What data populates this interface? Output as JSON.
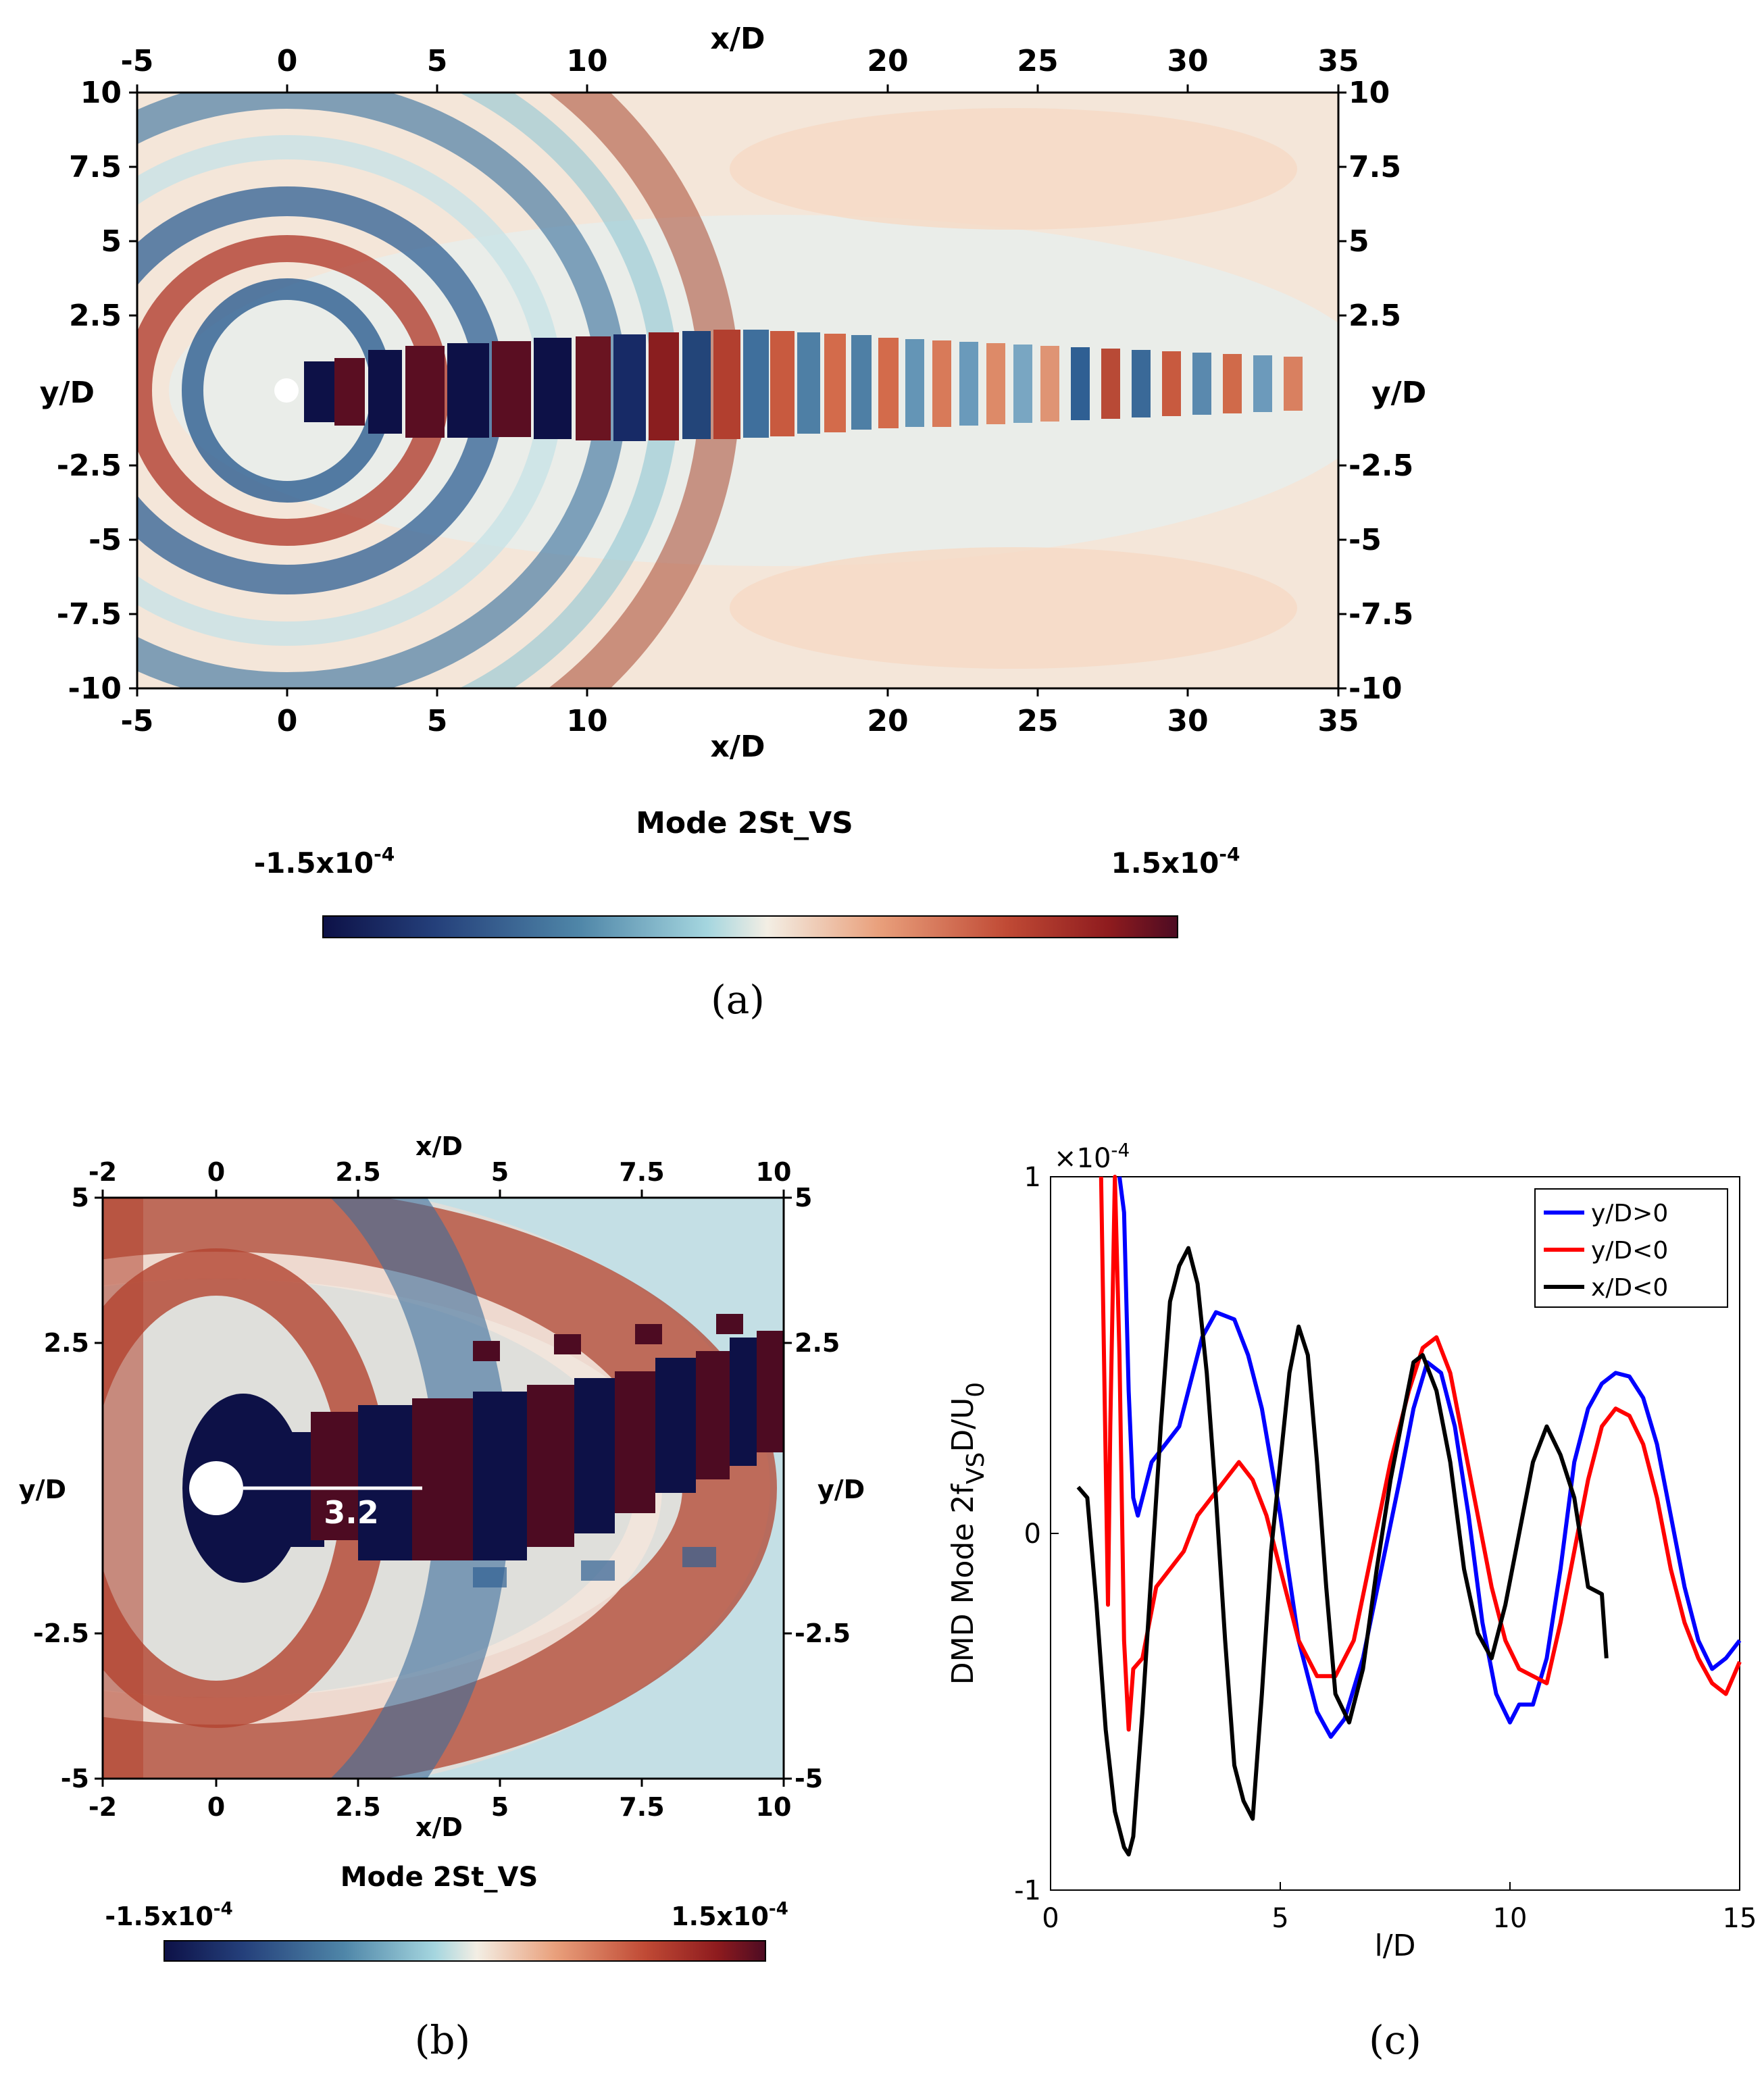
{
  "panel_a": {
    "caption": "(a)",
    "x_axis_label": "x/D",
    "y_axis_label": "y/D",
    "x_ticks": [
      "-5",
      "0",
      "5",
      "10",
      "20",
      "25",
      "30",
      "35"
    ],
    "y_ticks": [
      "10",
      "7.5",
      "5",
      "2.5",
      "-2.5",
      "-5",
      "-7.5",
      "-10"
    ],
    "colorbar_title": "Mode 2St_VS",
    "colorbar_min": "-1.5x10",
    "colorbar_max": "1.5x10",
    "colorbar_exp": "-4"
  },
  "panel_b": {
    "caption": "(b)",
    "x_axis_label": "x/D",
    "y_axis_label": "y/D",
    "x_ticks": [
      "-2",
      "0",
      "2.5",
      "5",
      "7.5",
      "10"
    ],
    "y_ticks": [
      "5",
      "2.5",
      "-2.5",
      "-5"
    ],
    "annotation": "3.2",
    "colorbar_title": "Mode 2St_VS",
    "colorbar_min": "-1.5x10",
    "colorbar_max": "1.5x10",
    "colorbar_exp": "-4"
  },
  "panel_c": {
    "caption": "(c)",
    "scale_label": "×10",
    "scale_exp": "-4",
    "ylabel_main": "DMD Mode 2f",
    "ylabel_sub": "VS",
    "ylabel_tail": "D/U",
    "ylabel_tail_sub": "0",
    "xlabel": "l/D",
    "x_tick_labels": [
      "0",
      "5",
      "10",
      "15"
    ],
    "y_tick_labels": [
      "1",
      "0",
      "-1"
    ]
  },
  "colors": {
    "cmap": [
      "#0d1147",
      "#243f7a",
      "#4f86a8",
      "#a5d6df",
      "#f3eee4",
      "#e9a07c",
      "#c04a35",
      "#8e1b1e",
      "#4d0b22"
    ],
    "series_blue": "#0000ff",
    "series_red": "#ff0000",
    "series_black": "#000000"
  },
  "chart_data": {
    "type": "line",
    "title": "",
    "xlabel": "l/D",
    "ylabel": "DMD Mode 2f_VS D/U_0 (x10^-4)",
    "xlim": [
      0,
      15
    ],
    "ylim": [
      -1,
      1
    ],
    "legend_position": "top-right",
    "series": [
      {
        "name": "y/D>0",
        "color": "#0000ff",
        "x": [
          1.5,
          1.6,
          1.7,
          1.8,
          1.9,
          2.0,
          2.2,
          2.5,
          2.8,
          3.0,
          3.3,
          3.6,
          4.0,
          4.3,
          4.6,
          5.0,
          5.4,
          5.8,
          6.1,
          6.4,
          6.8,
          7.2,
          7.6,
          7.9,
          8.2,
          8.5,
          8.8,
          9.1,
          9.4,
          9.7,
          10.0,
          10.2,
          10.5,
          10.8,
          11.1,
          11.4,
          11.7,
          12.0,
          12.3,
          12.6,
          12.9,
          13.2,
          13.5,
          13.8,
          14.1,
          14.4,
          14.7,
          15.0
        ],
        "y": [
          1.0,
          0.9,
          0.4,
          0.1,
          0.05,
          0.1,
          0.2,
          0.25,
          0.3,
          0.4,
          0.55,
          0.62,
          0.6,
          0.5,
          0.35,
          0.05,
          -0.3,
          -0.5,
          -0.57,
          -0.52,
          -0.35,
          -0.1,
          0.15,
          0.35,
          0.48,
          0.45,
          0.3,
          0.05,
          -0.25,
          -0.45,
          -0.53,
          -0.48,
          -0.48,
          -0.35,
          -0.1,
          0.2,
          0.35,
          0.42,
          0.45,
          0.44,
          0.38,
          0.25,
          0.05,
          -0.15,
          -0.3,
          -0.38,
          -0.35,
          -0.3
        ],
        "label": "y/D>0"
      },
      {
        "name": "y/D<0",
        "color": "#ff0000",
        "x": [
          1.1,
          1.15,
          1.2,
          1.25,
          1.3,
          1.4,
          1.5,
          1.6,
          1.7,
          1.8,
          2.0,
          2.3,
          2.6,
          2.9,
          3.2,
          3.5,
          3.8,
          4.1,
          4.4,
          4.7,
          5.0,
          5.4,
          5.8,
          6.2,
          6.6,
          7.0,
          7.4,
          7.8,
          8.1,
          8.4,
          8.7,
          9.0,
          9.3,
          9.6,
          9.9,
          10.2,
          10.5,
          10.8,
          11.1,
          11.4,
          11.7,
          12.0,
          12.3,
          12.6,
          12.9,
          13.2,
          13.5,
          13.8,
          14.1,
          14.4,
          14.7,
          15.0
        ],
        "y": [
          1.0,
          0.6,
          0.2,
          -0.2,
          0.3,
          1.0,
          0.5,
          -0.3,
          -0.55,
          -0.38,
          -0.35,
          -0.15,
          -0.1,
          -0.05,
          0.05,
          0.1,
          0.15,
          0.2,
          0.15,
          0.05,
          -0.1,
          -0.3,
          -0.4,
          -0.4,
          -0.3,
          -0.05,
          0.2,
          0.4,
          0.52,
          0.55,
          0.45,
          0.25,
          0.05,
          -0.15,
          -0.3,
          -0.38,
          -0.4,
          -0.42,
          -0.25,
          -0.05,
          0.15,
          0.3,
          0.35,
          0.33,
          0.25,
          0.1,
          -0.1,
          -0.25,
          -0.35,
          -0.42,
          -0.45,
          -0.36
        ],
        "label": "y/D<0"
      },
      {
        "name": "x/D<0",
        "color": "#000000",
        "x": [
          0.6,
          0.8,
          1.0,
          1.2,
          1.4,
          1.6,
          1.7,
          1.8,
          2.0,
          2.2,
          2.4,
          2.6,
          2.8,
          3.0,
          3.1,
          3.2,
          3.4,
          3.6,
          3.8,
          4.0,
          4.2,
          4.4,
          4.6,
          4.8,
          5.0,
          5.2,
          5.4,
          5.6,
          5.8,
          6.0,
          6.2,
          6.5,
          6.8,
          7.1,
          7.4,
          7.7,
          7.9,
          8.1,
          8.4,
          8.7,
          9.0,
          9.3,
          9.6,
          9.9,
          10.2,
          10.5,
          10.8,
          11.1,
          11.4,
          11.7,
          12.0,
          12.1
        ],
        "y": [
          0.13,
          0.1,
          -0.2,
          -0.55,
          -0.78,
          -0.88,
          -0.9,
          -0.85,
          -0.5,
          -0.1,
          0.3,
          0.65,
          0.75,
          0.8,
          0.75,
          0.7,
          0.45,
          0.1,
          -0.3,
          -0.65,
          -0.75,
          -0.8,
          -0.45,
          -0.05,
          0.2,
          0.45,
          0.58,
          0.5,
          0.2,
          -0.15,
          -0.45,
          -0.53,
          -0.38,
          -0.1,
          0.15,
          0.35,
          0.48,
          0.5,
          0.4,
          0.2,
          -0.1,
          -0.28,
          -0.35,
          -0.2,
          0.0,
          0.2,
          0.3,
          0.22,
          0.1,
          -0.15,
          -0.17,
          -0.35
        ],
        "label": "x/D<0"
      }
    ]
  }
}
